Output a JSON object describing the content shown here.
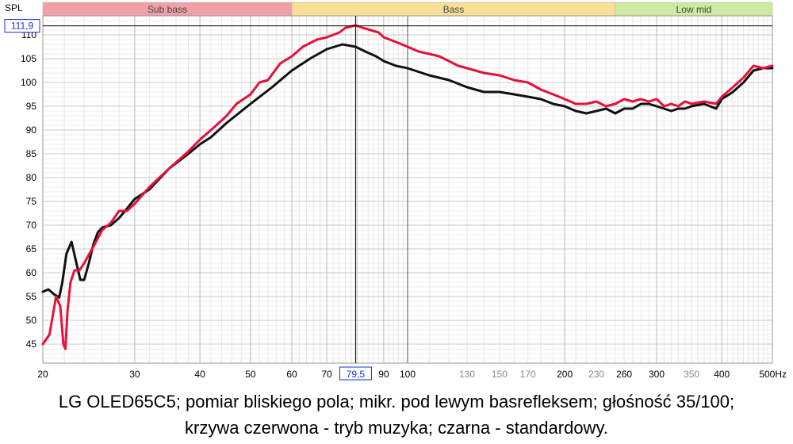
{
  "caption": {
    "line1": "LG OLED65C5; pomiar bliskiego pola; mikr. pod lewym basrefleksem; głośność 35/100;",
    "line2": "krzywa czerwona - tryb muzyka; czarna - standardowy."
  },
  "chart_data": {
    "type": "line",
    "ylabel": "SPL",
    "xlim": [
      20,
      500
    ],
    "ylim": [
      41,
      114
    ],
    "x_scale": "log",
    "grid": true,
    "bands": [
      {
        "label": "Sub bass",
        "from": 20,
        "to": 60,
        "color": "#f2a0a8"
      },
      {
        "label": "Bass",
        "from": 60,
        "to": 250,
        "color": "#f7df96"
      },
      {
        "label": "Low mid",
        "from": 250,
        "to": 500,
        "color": "#cdeaa0"
      }
    ],
    "x_ticks": [
      {
        "value": 20,
        "label": "20",
        "style": "major"
      },
      {
        "value": 30,
        "label": "30",
        "style": "major"
      },
      {
        "value": 40,
        "label": "40",
        "style": "major"
      },
      {
        "value": 50,
        "label": "50",
        "style": "major"
      },
      {
        "value": 60,
        "label": "60",
        "style": "major"
      },
      {
        "value": 70,
        "label": "70",
        "style": "major"
      },
      {
        "value": 90,
        "label": "90",
        "style": "major"
      },
      {
        "value": 100,
        "label": "100",
        "style": "major"
      },
      {
        "value": 130,
        "label": "130",
        "style": "minor"
      },
      {
        "value": 150,
        "label": "150",
        "style": "minor"
      },
      {
        "value": 170,
        "label": "170",
        "style": "minor"
      },
      {
        "value": 200,
        "label": "200",
        "style": "major"
      },
      {
        "value": 230,
        "label": "230",
        "style": "minor"
      },
      {
        "value": 260,
        "label": "260",
        "style": "major"
      },
      {
        "value": 300,
        "label": "300",
        "style": "major"
      },
      {
        "value": 350,
        "label": "350",
        "style": "minor"
      },
      {
        "value": 400,
        "label": "400",
        "style": "major"
      },
      {
        "value": 500,
        "label": "500Hz",
        "style": "major"
      }
    ],
    "y_ticks": [
      45,
      50,
      55,
      60,
      65,
      70,
      75,
      80,
      85,
      90,
      95,
      100,
      105,
      110
    ],
    "cursor": {
      "x": 79.5,
      "x_label": "79,5",
      "y": 111.9,
      "y_label": "111,9"
    },
    "series": [
      {
        "color": "#e8103a",
        "x": [
          20,
          20.6,
          21.2,
          21.6,
          21.9,
          22.1,
          22.3,
          22.6,
          23,
          23.5,
          24,
          25,
          26,
          27,
          28,
          29,
          30,
          32,
          35,
          38,
          40,
          42,
          44,
          45,
          47,
          50,
          52,
          54,
          57,
          60,
          63,
          67,
          70,
          74,
          76,
          79.5,
          82,
          85,
          88,
          90,
          95,
          100,
          105,
          110,
          115,
          120,
          125,
          130,
          140,
          150,
          160,
          170,
          180,
          190,
          200,
          210,
          220,
          230,
          240,
          250,
          260,
          270,
          280,
          290,
          300,
          310,
          320,
          330,
          340,
          350,
          370,
          390,
          400,
          420,
          440,
          460,
          480,
          500
        ],
        "y": [
          45,
          47,
          55,
          53,
          45,
          44,
          52,
          58,
          60.5,
          60.5,
          62,
          65.5,
          69,
          70.5,
          73,
          73,
          74.5,
          78,
          82,
          85.5,
          88,
          90,
          92,
          93,
          95.5,
          97.5,
          100,
          100.5,
          104,
          105.5,
          107.5,
          109,
          109.5,
          110.5,
          111.5,
          112,
          111.5,
          111,
          110.5,
          109.5,
          108.5,
          107.5,
          106.5,
          106,
          105.5,
          104.5,
          103.5,
          103,
          102,
          101.5,
          100.5,
          100,
          98.5,
          97.5,
          96.5,
          95.5,
          95.5,
          96,
          95,
          95.5,
          96.5,
          96,
          96.5,
          96,
          96.5,
          95,
          95.5,
          95,
          96,
          95.5,
          96,
          95.5,
          97,
          99,
          101,
          103.5,
          103,
          103.5
        ]
      },
      {
        "color": "#111111",
        "x": [
          20,
          20.5,
          21,
          21.5,
          21.8,
          22.2,
          22.7,
          23.2,
          23.6,
          24,
          24.5,
          25,
          25.5,
          26,
          27,
          28,
          29,
          30,
          32,
          35,
          38,
          40,
          42,
          45,
          50,
          55,
          60,
          65,
          70,
          75,
          79.5,
          83,
          87,
          90,
          95,
          100,
          110,
          120,
          130,
          140,
          150,
          160,
          170,
          180,
          190,
          200,
          210,
          220,
          230,
          240,
          250,
          260,
          270,
          280,
          290,
          300,
          310,
          320,
          330,
          340,
          350,
          370,
          390,
          400,
          420,
          440,
          460,
          480,
          500
        ],
        "y": [
          56,
          56.5,
          55.5,
          54.8,
          58,
          64,
          66.5,
          62,
          58.5,
          58.5,
          62,
          66,
          68.5,
          69.5,
          70,
          71.5,
          73.5,
          75.5,
          77.5,
          82,
          85,
          87,
          88.5,
          91.5,
          95.5,
          99,
          102.5,
          105,
          107,
          108,
          107.5,
          106.5,
          105.5,
          104.5,
          103.5,
          103,
          101.5,
          100.5,
          99,
          98,
          98,
          97.5,
          97,
          96.5,
          95.5,
          95,
          94,
          93.5,
          94,
          94.5,
          93.5,
          94.5,
          94.5,
          95.5,
          95.5,
          95,
          94.5,
          94,
          94.5,
          94.5,
          95,
          95.5,
          94.5,
          96.5,
          98,
          100,
          102.5,
          103,
          103
        ]
      }
    ]
  }
}
